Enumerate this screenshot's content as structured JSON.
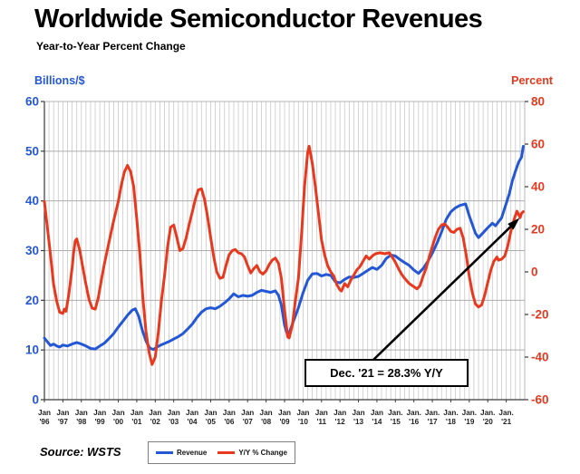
{
  "header": {
    "title": "Worldwide Semiconductor Revenues",
    "subtitle": "Year-to-Year Percent Change"
  },
  "chart_data": {
    "type": "line",
    "title": "Worldwide Semiconductor Revenues",
    "subtitle": "Year-to-Year Percent Change",
    "grid": "on",
    "x_range": [
      1996,
      2022
    ],
    "left_axis": {
      "caption": "Billions/$",
      "range": [
        0,
        60
      ],
      "ticks": [
        0,
        10,
        20,
        30,
        40,
        50,
        60
      ],
      "color": "#2457d6"
    },
    "right_axis": {
      "caption": "Percent",
      "range": [
        -60,
        80
      ],
      "ticks": [
        80,
        60,
        40,
        20,
        0,
        -20,
        -40,
        -60
      ],
      "color": "#e8391f"
    },
    "x_labels": [
      {
        "m": "Jan",
        "y": "'96"
      },
      {
        "m": "Jan",
        "y": "'97"
      },
      {
        "m": "Jan",
        "y": "'98"
      },
      {
        "m": "Jan",
        "y": "'99"
      },
      {
        "m": "Jan",
        "y": "'00"
      },
      {
        "m": "Jan",
        "y": "'01"
      },
      {
        "m": "Jan",
        "y": "'02"
      },
      {
        "m": "Jan",
        "y": "'03"
      },
      {
        "m": "Jan",
        "y": "'04"
      },
      {
        "m": "Jan",
        "y": "'05"
      },
      {
        "m": "Jan",
        "y": "'06"
      },
      {
        "m": "Jan",
        "y": "'07"
      },
      {
        "m": "Jan",
        "y": "'08"
      },
      {
        "m": "Jan",
        "y": "'09"
      },
      {
        "m": "Jan",
        "y": "'10"
      },
      {
        "m": "Jan",
        "y": "'11"
      },
      {
        "m": "Jan",
        "y": "'12"
      },
      {
        "m": "Jan",
        "y": "'13"
      },
      {
        "m": "Jan",
        "y": "'14"
      },
      {
        "m": "Jan.",
        "y": "'15"
      },
      {
        "m": "Jan.",
        "y": "'16"
      },
      {
        "m": "Jan.",
        "y": "'17"
      },
      {
        "m": "Jan.",
        "y": "'18"
      },
      {
        "m": "Jan.",
        "y": "'19"
      },
      {
        "m": "Jan.",
        "y": "'20"
      },
      {
        "m": "Jan.",
        "y": "'21"
      }
    ],
    "annotation": {
      "label": "Dec. '21 = 28.3% Y/Y"
    },
    "series": [
      {
        "name": "Revenue",
        "axis": "left",
        "color": "#2457d6",
        "units": "billions USD/month",
        "points": [
          [
            1996.0,
            12.4
          ],
          [
            1996.17,
            11.6
          ],
          [
            1996.33,
            10.9
          ],
          [
            1996.5,
            11.2
          ],
          [
            1996.67,
            10.8
          ],
          [
            1996.83,
            10.6
          ],
          [
            1997.0,
            11.0
          ],
          [
            1997.25,
            10.8
          ],
          [
            1997.5,
            11.2
          ],
          [
            1997.75,
            11.5
          ],
          [
            1998.0,
            11.2
          ],
          [
            1998.25,
            10.8
          ],
          [
            1998.5,
            10.3
          ],
          [
            1998.75,
            10.2
          ],
          [
            1999.0,
            10.8
          ],
          [
            1999.25,
            11.4
          ],
          [
            1999.5,
            12.3
          ],
          [
            1999.75,
            13.3
          ],
          [
            2000.0,
            14.6
          ],
          [
            2000.25,
            15.8
          ],
          [
            2000.5,
            17.0
          ],
          [
            2000.75,
            18.0
          ],
          [
            2000.92,
            18.3
          ],
          [
            2001.1,
            16.8
          ],
          [
            2001.3,
            14.0
          ],
          [
            2001.5,
            11.8
          ],
          [
            2001.7,
            10.4
          ],
          [
            2001.9,
            10.1
          ],
          [
            2002.1,
            10.6
          ],
          [
            2002.3,
            11.0
          ],
          [
            2002.5,
            11.3
          ],
          [
            2002.75,
            11.7
          ],
          [
            2003.0,
            12.2
          ],
          [
            2003.25,
            12.7
          ],
          [
            2003.5,
            13.3
          ],
          [
            2003.75,
            14.2
          ],
          [
            2004.0,
            15.2
          ],
          [
            2004.25,
            16.5
          ],
          [
            2004.5,
            17.6
          ],
          [
            2004.75,
            18.3
          ],
          [
            2005.0,
            18.5
          ],
          [
            2005.25,
            18.3
          ],
          [
            2005.5,
            18.8
          ],
          [
            2005.75,
            19.5
          ],
          [
            2006.0,
            20.3
          ],
          [
            2006.25,
            21.3
          ],
          [
            2006.5,
            20.7
          ],
          [
            2006.75,
            21.0
          ],
          [
            2007.0,
            20.8
          ],
          [
            2007.25,
            21.0
          ],
          [
            2007.5,
            21.6
          ],
          [
            2007.75,
            22.0
          ],
          [
            2008.0,
            21.8
          ],
          [
            2008.25,
            21.6
          ],
          [
            2008.5,
            21.9
          ],
          [
            2008.67,
            21.0
          ],
          [
            2008.83,
            19.0
          ],
          [
            2009.0,
            15.0
          ],
          [
            2009.17,
            12.9
          ],
          [
            2009.33,
            14.2
          ],
          [
            2009.5,
            16.0
          ],
          [
            2009.75,
            18.5
          ],
          [
            2010.0,
            21.5
          ],
          [
            2010.25,
            24.0
          ],
          [
            2010.5,
            25.3
          ],
          [
            2010.75,
            25.4
          ],
          [
            2011.0,
            24.9
          ],
          [
            2011.25,
            25.2
          ],
          [
            2011.5,
            25.0
          ],
          [
            2011.75,
            23.7
          ],
          [
            2012.0,
            23.5
          ],
          [
            2012.25,
            24.2
          ],
          [
            2012.5,
            24.7
          ],
          [
            2012.75,
            24.6
          ],
          [
            2013.0,
            24.8
          ],
          [
            2013.25,
            25.4
          ],
          [
            2013.5,
            26.0
          ],
          [
            2013.75,
            26.6
          ],
          [
            2014.0,
            26.2
          ],
          [
            2014.25,
            27.0
          ],
          [
            2014.5,
            28.4
          ],
          [
            2014.75,
            29.1
          ],
          [
            2015.0,
            28.9
          ],
          [
            2015.25,
            28.2
          ],
          [
            2015.5,
            27.6
          ],
          [
            2015.75,
            27.0
          ],
          [
            2016.0,
            26.1
          ],
          [
            2016.25,
            25.4
          ],
          [
            2016.5,
            26.4
          ],
          [
            2016.75,
            27.8
          ],
          [
            2017.0,
            29.5
          ],
          [
            2017.25,
            31.5
          ],
          [
            2017.5,
            33.8
          ],
          [
            2017.75,
            36.3
          ],
          [
            2018.0,
            37.8
          ],
          [
            2018.25,
            38.6
          ],
          [
            2018.5,
            39.1
          ],
          [
            2018.8,
            39.4
          ],
          [
            2019.0,
            37.0
          ],
          [
            2019.17,
            35.2
          ],
          [
            2019.33,
            33.5
          ],
          [
            2019.5,
            32.6
          ],
          [
            2019.75,
            33.6
          ],
          [
            2020.0,
            34.6
          ],
          [
            2020.25,
            35.5
          ],
          [
            2020.42,
            35.0
          ],
          [
            2020.58,
            35.8
          ],
          [
            2020.75,
            36.6
          ],
          [
            2021.0,
            39.5
          ],
          [
            2021.17,
            41.5
          ],
          [
            2021.33,
            44.0
          ],
          [
            2021.5,
            46.0
          ],
          [
            2021.67,
            47.8
          ],
          [
            2021.83,
            48.8
          ],
          [
            2021.92,
            51.0
          ]
        ]
      },
      {
        "name": "Y/Y % Change",
        "axis": "right",
        "color": "#e8391f",
        "units": "percent",
        "points": [
          [
            1996.0,
            33
          ],
          [
            1996.17,
            20
          ],
          [
            1996.33,
            8
          ],
          [
            1996.5,
            -6
          ],
          [
            1996.67,
            -14
          ],
          [
            1996.83,
            -19
          ],
          [
            1997.0,
            -19.5
          ],
          [
            1997.08,
            -17.5
          ],
          [
            1997.17,
            -18.5
          ],
          [
            1997.33,
            -10
          ],
          [
            1997.5,
            2
          ],
          [
            1997.58,
            9
          ],
          [
            1997.67,
            14.5
          ],
          [
            1997.75,
            15.5
          ],
          [
            1997.92,
            10
          ],
          [
            1998.08,
            2
          ],
          [
            1998.25,
            -6
          ],
          [
            1998.42,
            -13
          ],
          [
            1998.58,
            -17
          ],
          [
            1998.75,
            -17.5
          ],
          [
            1998.92,
            -12
          ],
          [
            1999.08,
            -4
          ],
          [
            1999.25,
            4
          ],
          [
            1999.5,
            14
          ],
          [
            1999.75,
            24
          ],
          [
            2000.0,
            33
          ],
          [
            2000.17,
            41
          ],
          [
            2000.33,
            47
          ],
          [
            2000.5,
            50
          ],
          [
            2000.67,
            47
          ],
          [
            2000.83,
            40
          ],
          [
            2001.0,
            25
          ],
          [
            2001.17,
            8
          ],
          [
            2001.33,
            -12
          ],
          [
            2001.5,
            -28
          ],
          [
            2001.67,
            -38
          ],
          [
            2001.83,
            -43.5
          ],
          [
            2002.0,
            -40
          ],
          [
            2002.17,
            -28
          ],
          [
            2002.33,
            -14
          ],
          [
            2002.5,
            -2
          ],
          [
            2002.67,
            12
          ],
          [
            2002.83,
            21
          ],
          [
            2003.0,
            22
          ],
          [
            2003.17,
            16
          ],
          [
            2003.33,
            10
          ],
          [
            2003.5,
            11
          ],
          [
            2003.67,
            16
          ],
          [
            2003.83,
            22
          ],
          [
            2004.0,
            28
          ],
          [
            2004.17,
            34
          ],
          [
            2004.33,
            38.5
          ],
          [
            2004.5,
            39
          ],
          [
            2004.67,
            34
          ],
          [
            2004.83,
            26
          ],
          [
            2005.0,
            16
          ],
          [
            2005.17,
            7
          ],
          [
            2005.33,
            0
          ],
          [
            2005.5,
            -3
          ],
          [
            2005.67,
            -2.5
          ],
          [
            2005.83,
            3
          ],
          [
            2006.0,
            8
          ],
          [
            2006.17,
            10
          ],
          [
            2006.33,
            10.5
          ],
          [
            2006.5,
            9
          ],
          [
            2006.67,
            8.5
          ],
          [
            2006.83,
            7
          ],
          [
            2007.0,
            3
          ],
          [
            2007.17,
            -0.5
          ],
          [
            2007.33,
            1.5
          ],
          [
            2007.5,
            3
          ],
          [
            2007.67,
            0
          ],
          [
            2007.83,
            -1
          ],
          [
            2008.0,
            0.5
          ],
          [
            2008.17,
            3.5
          ],
          [
            2008.33,
            5.5
          ],
          [
            2008.5,
            6.5
          ],
          [
            2008.67,
            4
          ],
          [
            2008.83,
            -3
          ],
          [
            2009.0,
            -18
          ],
          [
            2009.17,
            -30.5
          ],
          [
            2009.25,
            -31
          ],
          [
            2009.42,
            -25
          ],
          [
            2009.58,
            -14
          ],
          [
            2009.75,
            -3
          ],
          [
            2009.92,
            18
          ],
          [
            2010.08,
            40
          ],
          [
            2010.25,
            56
          ],
          [
            2010.33,
            59
          ],
          [
            2010.5,
            51
          ],
          [
            2010.67,
            40
          ],
          [
            2010.83,
            28
          ],
          [
            2011.0,
            15
          ],
          [
            2011.17,
            8
          ],
          [
            2011.33,
            3
          ],
          [
            2011.5,
            0
          ],
          [
            2011.67,
            -2
          ],
          [
            2011.83,
            -6
          ],
          [
            2012.0,
            -8.5
          ],
          [
            2012.08,
            -9
          ],
          [
            2012.25,
            -5.5
          ],
          [
            2012.42,
            -7
          ],
          [
            2012.58,
            -4
          ],
          [
            2012.75,
            -1.5
          ],
          [
            2012.92,
            1
          ],
          [
            2013.08,
            2.5
          ],
          [
            2013.25,
            5
          ],
          [
            2013.42,
            7.5
          ],
          [
            2013.58,
            6
          ],
          [
            2013.75,
            7.5
          ],
          [
            2013.92,
            8.5
          ],
          [
            2014.17,
            9
          ],
          [
            2014.42,
            8.5
          ],
          [
            2014.67,
            9
          ],
          [
            2014.83,
            7
          ],
          [
            2015.0,
            4.5
          ],
          [
            2015.17,
            1.5
          ],
          [
            2015.33,
            -1
          ],
          [
            2015.5,
            -3
          ],
          [
            2015.75,
            -5.5
          ],
          [
            2016.0,
            -7
          ],
          [
            2016.17,
            -8
          ],
          [
            2016.33,
            -6.5
          ],
          [
            2016.5,
            -2
          ],
          [
            2016.67,
            2
          ],
          [
            2016.83,
            7
          ],
          [
            2017.0,
            12
          ],
          [
            2017.17,
            16.5
          ],
          [
            2017.33,
            20
          ],
          [
            2017.5,
            22
          ],
          [
            2017.67,
            22.5
          ],
          [
            2017.83,
            21
          ],
          [
            2018.0,
            19
          ],
          [
            2018.17,
            18.5
          ],
          [
            2018.33,
            20
          ],
          [
            2018.5,
            20.5
          ],
          [
            2018.67,
            16
          ],
          [
            2018.83,
            8
          ],
          [
            2019.0,
            -2
          ],
          [
            2019.17,
            -10
          ],
          [
            2019.33,
            -15
          ],
          [
            2019.5,
            -16.5
          ],
          [
            2019.67,
            -15.5
          ],
          [
            2019.83,
            -11
          ],
          [
            2020.0,
            -5
          ],
          [
            2020.17,
            1
          ],
          [
            2020.33,
            5
          ],
          [
            2020.5,
            7
          ],
          [
            2020.58,
            5.5
          ],
          [
            2020.75,
            6
          ],
          [
            2020.92,
            7.5
          ],
          [
            2021.08,
            12
          ],
          [
            2021.25,
            19
          ],
          [
            2021.42,
            24.5
          ],
          [
            2021.58,
            28.5
          ],
          [
            2021.67,
            27
          ],
          [
            2021.75,
            25.5
          ],
          [
            2021.83,
            27.5
          ],
          [
            2021.92,
            28.3
          ]
        ]
      }
    ],
    "colors": {
      "gridline": "#c9c9c9",
      "axis_dark": "#3a3a3a",
      "axis_light": "#b5b5b5",
      "x_label": "#222222"
    }
  },
  "footer": {
    "source": "Source: WSTS",
    "legend": [
      {
        "label": "Revenue",
        "color": "#2457d6"
      },
      {
        "label": "Y/Y % Change",
        "color": "#e8391f"
      }
    ]
  }
}
